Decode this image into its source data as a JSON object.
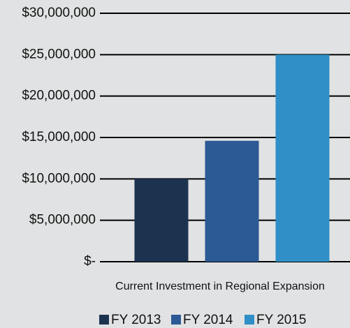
{
  "chart_data": {
    "type": "bar",
    "categories": [
      "Current Investment in Regional Expansion"
    ],
    "series": [
      {
        "name": "FY 2013",
        "color": "#1c3350",
        "values": [
          10000000
        ]
      },
      {
        "name": "FY 2014",
        "color": "#2c5a95",
        "values": [
          14600000
        ]
      },
      {
        "name": "FY 2015",
        "color": "#2f8fc6",
        "values": [
          25000000
        ]
      }
    ],
    "ylim": [
      0,
      30000000
    ],
    "yticks": [
      {
        "value": 0,
        "label": "$-"
      },
      {
        "value": 5000000,
        "label": "$5,000,000"
      },
      {
        "value": 10000000,
        "label": "$10,000,000"
      },
      {
        "value": 15000000,
        "label": "$15,000,000"
      },
      {
        "value": 20000000,
        "label": "$20,000,000"
      },
      {
        "value": 25000000,
        "label": "$25,000,000"
      },
      {
        "value": 30000000,
        "label": "$30,000,000"
      }
    ],
    "grid": true,
    "legend": "bottom"
  }
}
